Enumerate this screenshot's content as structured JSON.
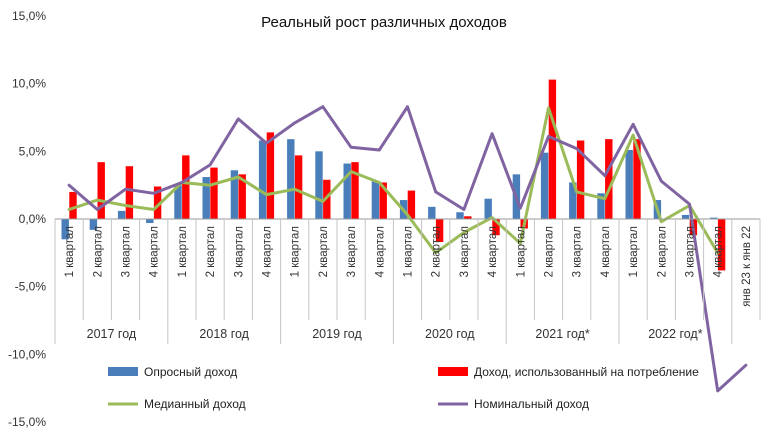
{
  "chart_data": {
    "type": "bar",
    "title": "Реальный рост различных доходов",
    "ylim": [
      -15,
      15
    ],
    "yticks": [
      15,
      10,
      5,
      0,
      -5,
      -10,
      -15
    ],
    "ytick_labels": [
      "15,0%",
      "10,0%",
      "5,0%",
      "0,0%",
      "-5,0%",
      "-10,0%",
      "-15,0%"
    ],
    "grid": false,
    "categories": [
      "1 квартал",
      "2 квартал",
      "3 квартал",
      "4 квартал",
      "1 квартал",
      "2 квартал",
      "3 квартал",
      "4 квартал",
      "1 квартал",
      "2 квартал",
      "3 квартал",
      "4 квартал",
      "1 квартал",
      "2 квартал",
      "3 квартал",
      "4 квартал",
      "1 квартал",
      "2 квартал",
      "3 квартал",
      "4 квартал",
      "1 квартал",
      "2 квартал",
      "3 квартал",
      "4 квартал",
      "янв 23 к янв 22"
    ],
    "groups": [
      {
        "label": "2017 год",
        "count": 4
      },
      {
        "label": "2018 год",
        "count": 4
      },
      {
        "label": "2019 год",
        "count": 4
      },
      {
        "label": "2020 год",
        "count": 4
      },
      {
        "label": "2021 год*",
        "count": 4
      },
      {
        "label": "2022 год*",
        "count": 4
      }
    ],
    "series": [
      {
        "name": "Опросный доход",
        "kind": "bar",
        "color": "#4a7ebb",
        "values": [
          -1.5,
          -0.8,
          0.6,
          -0.3,
          2.5,
          3.1,
          3.6,
          5.8,
          5.9,
          5.0,
          4.1,
          2.8,
          1.4,
          0.9,
          0.5,
          1.5,
          3.3,
          4.9,
          2.7,
          1.9,
          5.1,
          1.4,
          0.3,
          0.1,
          null
        ]
      },
      {
        "name": "Доход, использованный  на потребление",
        "kind": "bar",
        "color": "#ff0000",
        "values": [
          2.0,
          4.2,
          3.9,
          2.4,
          4.7,
          3.8,
          3.3,
          6.4,
          4.7,
          2.9,
          4.2,
          2.7,
          2.1,
          -1.7,
          0.2,
          -1.2,
          -0.7,
          10.3,
          5.8,
          5.9,
          5.9,
          null,
          -1.2,
          -3.8,
          null
        ]
      },
      {
        "name": "Медианный доход",
        "kind": "line",
        "color": "#9bbb59",
        "values": [
          0.7,
          1.4,
          1.0,
          0.7,
          2.7,
          2.5,
          3.1,
          1.8,
          2.2,
          1.3,
          3.5,
          2.7,
          0.3,
          -2.5,
          -1.0,
          0.1,
          -1.8,
          8.2,
          2.0,
          1.5,
          6.2,
          -0.2,
          1.0,
          -2.5,
          null
        ]
      },
      {
        "name": "Номинальный доход",
        "kind": "line",
        "color": "#8064a2",
        "values": [
          2.5,
          0.7,
          2.2,
          1.9,
          2.7,
          4.0,
          7.4,
          5.6,
          7.1,
          8.3,
          5.3,
          5.1,
          8.3,
          2.0,
          0.7,
          6.3,
          0.8,
          6.1,
          5.2,
          3.2,
          7.0,
          2.8,
          1.1,
          -12.7,
          -10.8
        ]
      }
    ],
    "legend": [
      {
        "label": "Опросный доход",
        "series": 0
      },
      {
        "label": "Доход, использованный  на потребление",
        "series": 1
      },
      {
        "label": "Медианный доход",
        "series": 2
      },
      {
        "label": "Номинальный доход",
        "series": 3
      }
    ],
    "legend_position": "bottom"
  }
}
